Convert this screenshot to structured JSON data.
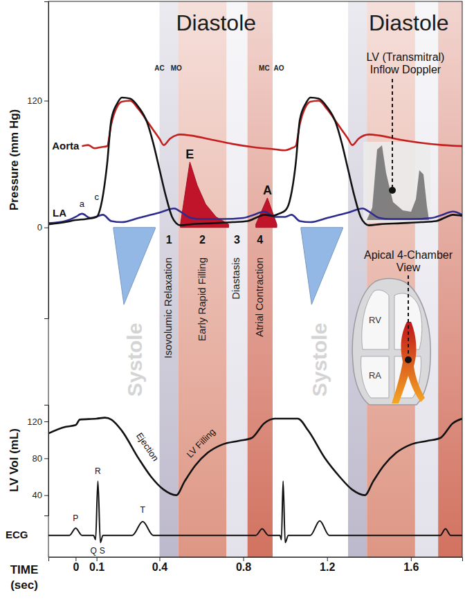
{
  "chart_data": [
    {
      "type": "line",
      "ylabel": "Pressure (mm Hg)",
      "tick_labels": "y",
      "xlim": [
        -0.13,
        1.845
      ],
      "ylim": [
        -86,
        214
      ],
      "yticks": [
        0,
        120
      ],
      "series": [
        {
          "type": "area",
          "color": "#93b8e6",
          "x": [
            0.18,
            0.23,
            0.38
          ],
          "values": [
            -1,
            -73,
            -1
          ]
        },
        {
          "type": "area",
          "color": "#93b8e6",
          "x": [
            1.075,
            1.126,
            1.275
          ],
          "values": [
            -1,
            -73,
            -1
          ]
        },
        {
          "type": "area",
          "name": "E",
          "color": "#c0142b",
          "x": [
            0.5,
            0.545,
            0.58,
            0.62,
            0.67,
            0.73
          ],
          "values": [
            3,
            62,
            40,
            22,
            10,
            3
          ]
        },
        {
          "type": "area",
          "name": "A",
          "color": "#c0142b",
          "x": [
            0.86,
            0.915,
            0.96
          ],
          "values": [
            3,
            28,
            3
          ]
        },
        {
          "type": "line",
          "name": "LA",
          "color": "#2e2b8f",
          "x": [
            -0.13,
            -0.05,
            0.0,
            0.03,
            0.07,
            0.11,
            0.13,
            0.17,
            0.22,
            0.3,
            0.4,
            0.47,
            0.5,
            0.55,
            0.6,
            0.7,
            0.8,
            0.85,
            0.9,
            0.95,
            1.0,
            1.03,
            1.07,
            1.12,
            1.2,
            1.3,
            1.37,
            1.4,
            1.45,
            1.5,
            1.6,
            1.7,
            1.75,
            1.8,
            1.845
          ],
          "values": [
            4,
            6,
            10,
            13,
            9,
            11,
            12,
            6,
            5,
            9,
            14,
            18,
            15,
            9,
            8,
            8,
            9,
            12,
            15,
            10,
            10,
            12,
            6,
            5,
            9,
            14,
            18,
            15,
            9,
            8,
            8,
            9,
            12,
            15,
            12
          ]
        },
        {
          "type": "line",
          "name": "Aorta",
          "color": "#c41e1e",
          "x": [
            0.03,
            0.06,
            0.09,
            0.12,
            0.15,
            0.17,
            0.2,
            0.22,
            0.26,
            0.3,
            0.35,
            0.4,
            0.42,
            0.45,
            0.5,
            0.55,
            0.65,
            0.75,
            0.85,
            0.95,
            1.0,
            1.03,
            1.05,
            1.07,
            1.1,
            1.12,
            1.16,
            1.2,
            1.25,
            1.3,
            1.32,
            1.35,
            1.4,
            1.45,
            1.55,
            1.65,
            1.75,
            1.845
          ],
          "values": [
            77,
            78,
            75,
            76,
            77,
            98,
            115,
            119,
            120,
            112,
            98,
            84,
            78,
            84,
            88,
            87,
            83,
            79,
            76,
            74,
            73,
            75,
            77,
            98,
            115,
            119,
            120,
            112,
            98,
            84,
            78,
            84,
            88,
            87,
            83,
            80,
            78,
            77
          ]
        },
        {
          "type": "line",
          "color": "#111111",
          "x": [
            -0.13,
            -0.05,
            0.0,
            0.05,
            0.1,
            0.12,
            0.15,
            0.17,
            0.2,
            0.22,
            0.26,
            0.3,
            0.34,
            0.37,
            0.4,
            0.43,
            0.46,
            0.48,
            0.5,
            0.55,
            0.65,
            0.75,
            0.82,
            0.87,
            0.9,
            0.94,
            0.97,
            1.0,
            1.02,
            1.05,
            1.07,
            1.1,
            1.12,
            1.16,
            1.2,
            1.24,
            1.27,
            1.3,
            1.33,
            1.36,
            1.38,
            1.4,
            1.45,
            1.55,
            1.65,
            1.72,
            1.77,
            1.8,
            1.845
          ],
          "values": [
            3,
            5,
            7,
            8,
            10,
            20,
            60,
            102,
            118,
            123,
            122,
            114,
            100,
            80,
            55,
            30,
            10,
            4,
            2,
            3,
            4,
            5,
            6,
            10,
            12,
            11,
            13,
            16,
            24,
            60,
            102,
            118,
            123,
            122,
            114,
            100,
            80,
            55,
            30,
            10,
            4,
            2,
            3,
            4,
            5,
            6,
            10,
            12,
            11
          ]
        }
      ],
      "annotations": [
        {
          "text": "a",
          "x": 0.03,
          "y": 22
        },
        {
          "text": "c",
          "x": 0.1,
          "y": 28
        }
      ]
    },
    {
      "type": "line",
      "ylabel": "LV Vol (mL)",
      "tick_labels": "y",
      "xlim": [
        -0.13,
        1.845
      ],
      "ylim": [
        18,
        138
      ],
      "yticks": [
        40,
        80,
        120
      ],
      "series": [
        {
          "type": "line",
          "color": "#111111",
          "x": [
            -0.13,
            -0.05,
            0.0,
            0.02,
            0.1,
            0.14,
            0.17,
            0.22,
            0.3,
            0.36,
            0.42,
            0.48,
            0.52,
            0.57,
            0.63,
            0.7,
            0.78,
            0.84,
            0.9,
            0.95,
            1.06,
            1.11,
            1.19,
            1.26,
            1.32,
            1.38,
            1.42,
            1.47,
            1.53,
            1.6,
            1.68,
            1.74,
            1.8,
            1.845
          ],
          "values": [
            107,
            114,
            116,
            122,
            123,
            124,
            122,
            110,
            80,
            60,
            46,
            40,
            55,
            72,
            86,
            95,
            99,
            102,
            118,
            123,
            123,
            110,
            80,
            60,
            46,
            40,
            55,
            72,
            86,
            95,
            99,
            102,
            118,
            123
          ]
        }
      ],
      "annotations": [
        {
          "text": "Ejection",
          "x": 0.34,
          "y": 92
        },
        {
          "text": "LV Filling",
          "x": 0.6,
          "y": 96
        }
      ]
    },
    {
      "type": "line",
      "ylabel": "ECG",
      "xlabel": "TIME (sec)",
      "tick_labels": "x",
      "xlim": [
        -0.13,
        1.845
      ],
      "ylim": [
        -0.6,
        1.6
      ],
      "xticks": [
        0,
        0.1,
        0.4,
        0.8,
        1.2,
        1.6
      ],
      "series": [
        {
          "type": "line",
          "color": "#111111",
          "x": [
            -0.13,
            -0.03,
            0.0,
            0.03,
            0.085,
            0.095,
            0.106,
            0.118,
            0.13,
            0.27,
            0.32,
            0.37,
            0.86,
            0.89,
            0.92,
            0.975,
            0.982,
            0.99,
            1.0,
            1.015,
            1.12,
            1.165,
            1.21,
            1.74,
            1.765,
            1.79,
            1.845
          ],
          "values": [
            0,
            0,
            0.2,
            0,
            0,
            -0.12,
            1.5,
            -0.2,
            0,
            0,
            0.38,
            0,
            0,
            0.18,
            0,
            0,
            -0.12,
            1.5,
            -0.2,
            0,
            0,
            0.4,
            0,
            0,
            0.18,
            0,
            0
          ]
        }
      ],
      "annotations": [
        {
          "text": "P",
          "x": 0.0,
          "y": 0.45
        },
        {
          "text": "Q",
          "x": 0.085,
          "y": -0.45
        },
        {
          "text": "R",
          "x": 0.106,
          "y": 1.75
        },
        {
          "text": "S",
          "x": 0.127,
          "y": -0.45
        },
        {
          "text": "T",
          "x": 0.32,
          "y": 0.68
        }
      ]
    }
  ],
  "overlay": {
    "bands": [
      {
        "start": 0.4,
        "end": 0.49,
        "color": "#bdb9cc",
        "number": 1,
        "label": "Isovolumic Relaxation"
      },
      {
        "start": 0.49,
        "end": 0.72,
        "color": "#de9684",
        "number": 2,
        "label": "Early Rapid Filling"
      },
      {
        "start": 0.72,
        "end": 0.82,
        "color": "#e3e1ea",
        "number": 3,
        "label": "Diastasis"
      },
      {
        "start": 0.82,
        "end": 0.94,
        "color": "#d27260",
        "number": 4,
        "label": "Atrial Contraction"
      },
      {
        "start": 1.3,
        "end": 1.39,
        "color": "#bdb9cc"
      },
      {
        "start": 1.39,
        "end": 1.62,
        "color": "#de9684"
      },
      {
        "start": 1.62,
        "end": 1.73,
        "color": "#e3e1ea"
      },
      {
        "start": 1.73,
        "end": 1.845,
        "color": "#d27260"
      }
    ],
    "headers": [
      {
        "text": "Diastole",
        "x": 0.67
      },
      {
        "text": "Diastole",
        "x": 1.59
      }
    ],
    "systole_labels": [
      {
        "text": "Systole",
        "x": 0.29
      },
      {
        "text": "Systole",
        "x": 1.17
      }
    ],
    "valve_events": [
      {
        "text": "AC",
        "x": 0.4
      },
      {
        "text": "MO",
        "x": 0.48
      },
      {
        "text": "MC",
        "x": 0.9
      },
      {
        "text": "AO",
        "x": 0.97
      }
    ],
    "doppler": {
      "label": "LV (Transmitral) Inflow Doppler"
    },
    "echo_view": {
      "label": "Apical 4-Chamber View",
      "chambers": [
        "RV",
        "RA"
      ]
    }
  }
}
